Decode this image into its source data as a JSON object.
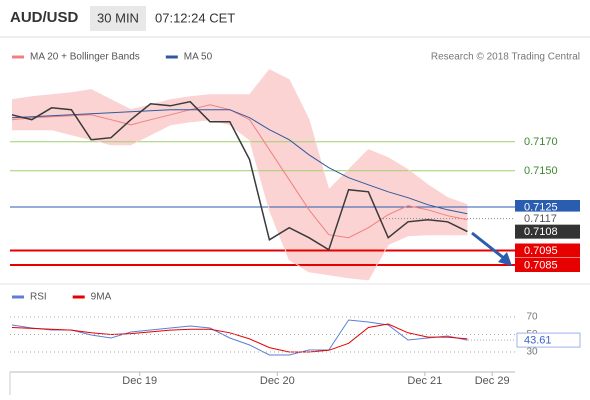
{
  "header": {
    "symbol": "AUD/USD",
    "timeframe": "30 MIN",
    "time": "07:12:24 CET"
  },
  "chart_data": [
    {
      "type": "line",
      "credit": "Research © 2018 Trading Central",
      "x": [
        0,
        2,
        4,
        6,
        8,
        10,
        12,
        14,
        16,
        18,
        20,
        22,
        24,
        26,
        28,
        30,
        32,
        34,
        36,
        38,
        40,
        42,
        44,
        46
      ],
      "xlim": [
        0,
        50
      ],
      "ylim": [
        0.707,
        0.7225
      ],
      "values": [
        0.71886,
        0.71852,
        0.71934,
        0.71921,
        0.71714,
        0.71728,
        0.71852,
        0.71962,
        0.71948,
        0.71976,
        0.71838,
        0.71838,
        0.71576,
        0.71024,
        0.71107,
        0.71038,
        0.70955,
        0.71369,
        0.71355,
        0.71038,
        0.71148,
        0.71162,
        0.71148,
        0.7108
      ],
      "color": "#3a3a3a",
      "series": [
        {
          "name": "MA 20 + Bollinger Bands",
          "color": "#f08080",
          "band_color": "#fbd3d3",
          "values": [
            0.71852,
            0.71866,
            0.71872,
            0.71879,
            0.71886,
            0.71852,
            0.71817,
            0.71852,
            0.71886,
            0.71921,
            0.71955,
            0.71921,
            0.71852,
            0.71645,
            0.71438,
            0.71231,
            0.71059,
            0.71038,
            0.71107,
            0.71197,
            0.71259,
            0.71231,
            0.7119,
            0.71162
          ],
          "upper": [
            0.7199,
            0.7201,
            0.72024,
            0.72038,
            0.72059,
            0.7199,
            0.71921,
            0.71955,
            0.7199,
            0.7201,
            0.72024,
            0.72024,
            0.72024,
            0.72197,
            0.72128,
            0.71852,
            0.71369,
            0.71507,
            0.71645,
            0.7159,
            0.71507,
            0.71403,
            0.71314,
            0.71266
          ],
          "lower": [
            0.71783,
            0.71783,
            0.71783,
            0.71748,
            0.71714,
            0.71679,
            0.71679,
            0.71748,
            0.71817,
            0.71838,
            0.71852,
            0.71817,
            0.71714,
            0.71231,
            0.70886,
            0.70803,
            0.70783,
            0.70762,
            0.70748,
            0.7099,
            0.71052,
            0.71059,
            0.71059,
            0.71059
          ]
        },
        {
          "name": "MA 50",
          "color": "#2f5a9e",
          "values": [
            0.71866,
            0.71872,
            0.71879,
            0.71886,
            0.71893,
            0.719,
            0.71907,
            0.71914,
            0.71921,
            0.71921,
            0.71921,
            0.71921,
            0.71866,
            0.71783,
            0.71714,
            0.7161,
            0.71521,
            0.71452,
            0.71403,
            0.71355,
            0.71314,
            0.71266,
            0.71231,
            0.71203
          ]
        }
      ],
      "levels": [
        {
          "value": 0.717,
          "label": "0.7170",
          "style": "support",
          "color": "#9fcf6f"
        },
        {
          "value": 0.715,
          "label": "0.7150",
          "style": "support",
          "color": "#9fcf6f"
        },
        {
          "value": 0.7125,
          "label": "0.7125",
          "style": "pivot",
          "color": "#2a5db0"
        },
        {
          "value": 0.7117,
          "label": "0.7117",
          "style": "dotted",
          "color": "#888888"
        },
        {
          "value": 0.7108,
          "label": "0.7108",
          "style": "last",
          "color": "#333333"
        },
        {
          "value": 0.7095,
          "label": "0.7095",
          "style": "target",
          "color": "#e60000"
        },
        {
          "value": 0.7085,
          "label": "0.7085",
          "style": "target",
          "color": "#e60000"
        }
      ]
    },
    {
      "type": "line",
      "x": [
        0,
        2,
        4,
        6,
        8,
        10,
        12,
        14,
        16,
        18,
        20,
        22,
        24,
        26,
        28,
        30,
        32,
        34,
        36,
        38,
        40,
        42,
        44,
        46
      ],
      "xlim": [
        0,
        50
      ],
      "ylim": [
        5,
        100
      ],
      "yticks": [
        30,
        50,
        70
      ],
      "grid": true,
      "xticks": [
        {
          "value": 12.9,
          "label": "Dec 19"
        },
        {
          "value": 26.8,
          "label": "Dec 20"
        },
        {
          "value": 41.7,
          "label": "Dec 21"
        },
        {
          "value": 48.5,
          "label": "Dec 29"
        }
      ],
      "last_value": 43.61,
      "series": [
        {
          "name": "RSI",
          "color": "#5b7fd6",
          "values": [
            60.9,
            57.4,
            55.1,
            55.1,
            49.4,
            46.0,
            52.9,
            55.1,
            57.4,
            59.7,
            57.4,
            46.0,
            38.0,
            26.6,
            26.6,
            32.3,
            32.3,
            66.6,
            64.3,
            60.9,
            43.7,
            46.0,
            48.3,
            43.61
          ]
        },
        {
          "name": "9MA",
          "color": "#e60000",
          "values": [
            58,
            57,
            56,
            55,
            52,
            50,
            51,
            53,
            55,
            56,
            56,
            52,
            45,
            35,
            30,
            30,
            32,
            40,
            58,
            62,
            52,
            47,
            47,
            45
          ]
        }
      ]
    }
  ]
}
